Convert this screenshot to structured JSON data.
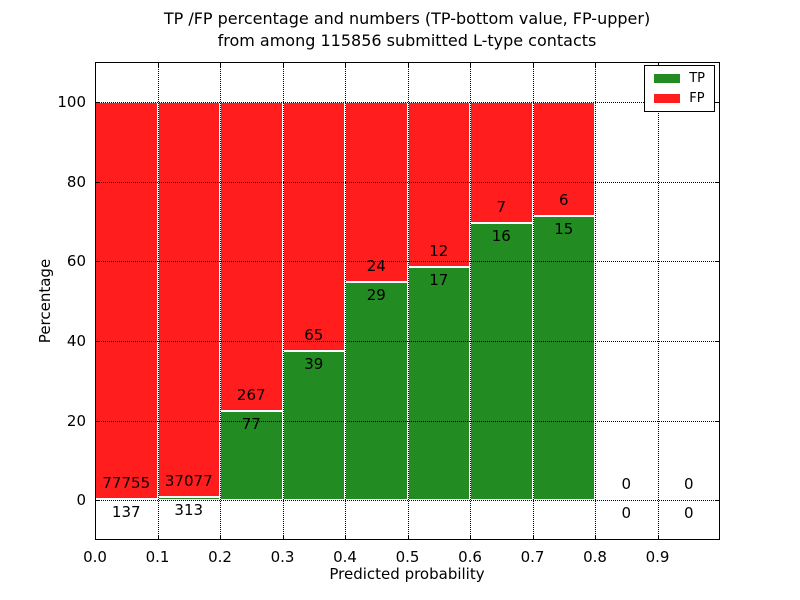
{
  "chart_data": {
    "type": "bar",
    "stacked": true,
    "title_line1": "TP /FP percentage and numbers (TP-bottom value, FP-upper)",
    "title_line2": "from among 115856 submitted L-type contacts",
    "total_submitted": 115856,
    "xlabel": "Predicted probability",
    "ylabel": "Percentage",
    "xlim": [
      0.0,
      1.0
    ],
    "ylim": [
      -10,
      110
    ],
    "grid": "dotted",
    "yticks": [
      0,
      20,
      40,
      60,
      80,
      100
    ],
    "xticks": [
      "0.0",
      "0.1",
      "0.2",
      "0.3",
      "0.4",
      "0.5",
      "0.6",
      "0.7",
      "0.8",
      "0.9"
    ],
    "bin_width": 0.1,
    "legend_position": "upper right",
    "legend": [
      {
        "label": "TP",
        "color": "#228b22"
      },
      {
        "label": "FP",
        "color": "#ff1d1d"
      }
    ],
    "bins": [
      {
        "x0": 0.0,
        "tp": 137,
        "fp": 77755
      },
      {
        "x0": 0.1,
        "tp": 313,
        "fp": 37077
      },
      {
        "x0": 0.2,
        "tp": 77,
        "fp": 267
      },
      {
        "x0": 0.3,
        "tp": 39,
        "fp": 65
      },
      {
        "x0": 0.4,
        "tp": 29,
        "fp": 24
      },
      {
        "x0": 0.5,
        "tp": 17,
        "fp": 12
      },
      {
        "x0": 0.6,
        "tp": 16,
        "fp": 7
      },
      {
        "x0": 0.7,
        "tp": 15,
        "fp": 6
      },
      {
        "x0": 0.8,
        "tp": 0,
        "fp": 0
      },
      {
        "x0": 0.9,
        "tp": 0,
        "fp": 0
      }
    ]
  }
}
